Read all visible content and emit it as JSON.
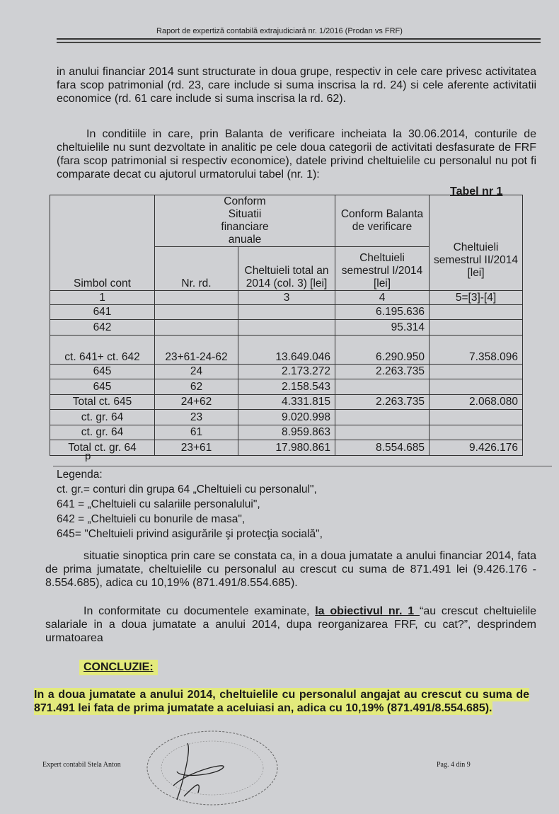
{
  "header": "Raport de expertiză contabilă extrajudiciară nr. 1/2016 (Prodan vs FRF)",
  "paragraphs": [
    "in anului financiar 2014 sunt structurate in doua grupe, respectiv in cele care privesc activitatea fara scop patrimonial (rd. 23, care include si suma inscrisa la rd. 24) si cele aferente activitatii economice (rd. 61 care include si suma inscrisa la rd. 62).",
    "In conditiile in care, prin Balanta de verificare incheiata la 30.06.2014, conturile de cheltuielile nu sunt dezvoltate in analitic pe cele doua categorii de activitati desfasurate de FRF (fara scop patrimonial si respectiv economice), datele privind cheltuielile cu personalul nu pot fi comparate decat cu ajutorul urmatorului tabel (nr. 1):"
  ],
  "table": {
    "label": "Tabel nr 1",
    "headers": {
      "simbol": "Simbol cont",
      "sit_fin": "Conform Situatii financiare anuale",
      "balanta": "Conform Balanta de verificare",
      "nr_rd": "Nr. rd.",
      "total_2014": "Cheltuieli total an 2014 (col. 3) [lei]",
      "sem1": "Cheltuieli semestrul I/2014 [lei]",
      "sem2": "Cheltuieli semestrul II/2014 [lei]"
    },
    "col_numbers": [
      "1",
      "",
      "3",
      "4",
      "5=[3]-[4]"
    ],
    "rows": [
      [
        "641",
        "",
        "",
        "6.195.636",
        ""
      ],
      [
        "642",
        "",
        "",
        "95.314",
        ""
      ],
      [
        "ct. 641+ ct. 642",
        "23+61-24-62",
        "13.649.046",
        "6.290.950",
        "7.358.096"
      ],
      [
        "645",
        "24",
        "2.173.272",
        "2.263.735",
        ""
      ],
      [
        "645",
        "62",
        "2.158.543",
        "",
        ""
      ],
      [
        "Total ct. 645",
        "24+62",
        "4.331.815",
        "2.263.735",
        "2.068.080"
      ],
      [
        "ct. gr. 64",
        "23",
        "9.020.998",
        "",
        ""
      ],
      [
        "ct. gr. 64",
        "61",
        "8.959.863",
        "",
        ""
      ],
      [
        "Total ct. gr. 64",
        "23+61",
        "17.980.861",
        "8.554.685",
        "9.426.176"
      ]
    ],
    "trailing": "p"
  },
  "legend": [
    "Legenda:",
    "ct. gr.= conturi din grupa 64 „Cheltuieli cu personalul\",",
    "641 = „Cheltuieli cu salariile personalului\",",
    "642 = „Cheltuieli cu bonurile de masa\",",
    "645= \"Cheltuieli privind asigurările şi protecţia socială\","
  ],
  "para3": "situatie sinoptica prin care se constata ca, in a doua jumatate a anului financiar 2014, fata de prima jumatate, cheltuielile cu personalul au crescut cu suma de 871.491 lei (9.426.176 - 8.554.685), adica cu 10,19% (871.491/8.554.685).",
  "para4": {
    "before": "In conformitate cu documentele examinate, ",
    "bold": "la obiectivul nr. 1 ",
    "after": "“au crescut cheltuielile salariale in a doua jumatate a anului 2014, dupa reorganizarea FRF, cu cat?”, desprindem urmatoarea"
  },
  "conclusion": {
    "title": "CONCLUZIE:",
    "text": "In a doua jumatate a anului 2014, cheltuielile cu personalul angajat au crescut cu suma de 871.491 lei fata de prima jumatate a aceluiasi an, adica cu 10,19% (871.491/8.554.685).",
    "highlight_color": "#e3ea7c"
  },
  "footer": {
    "author": "Expert contabil Stela Anton",
    "page": "Pag. 4 din 9"
  }
}
